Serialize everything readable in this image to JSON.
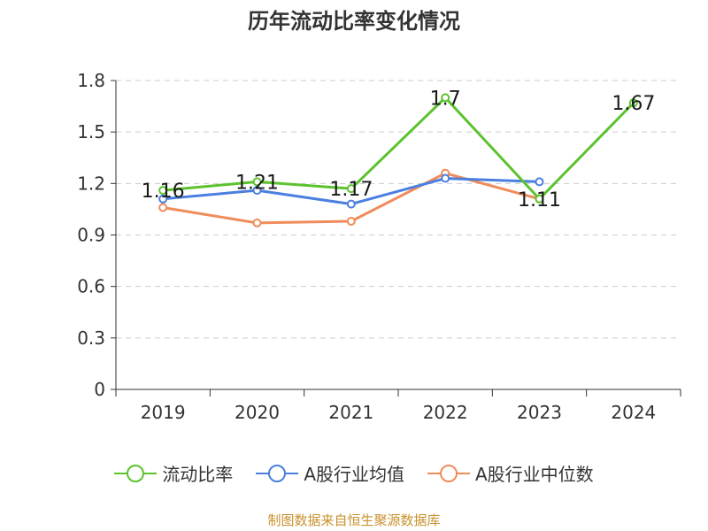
{
  "title": "历年流动比率变化情况",
  "source": "制图数据来自恒生聚源数据库",
  "colors": {
    "current_ratio": "#5cc22e",
    "industry_avg": "#4a7fe0",
    "industry_median": "#f08c5a",
    "grid": "#cccccc",
    "axis": "#333333"
  },
  "chart_data": {
    "type": "line",
    "title": "历年流动比率变化情况",
    "categories": [
      "2019",
      "2020",
      "2021",
      "2022",
      "2023",
      "2024"
    ],
    "ylim": [
      0,
      1.8
    ],
    "yticks": [
      "0",
      "0.3",
      "0.6",
      "0.9",
      "1.2",
      "1.5",
      "1.8"
    ],
    "grid": true,
    "legend_position": "bottom",
    "series": [
      {
        "name": "流动比率",
        "color": "#5cc22e",
        "values": [
          1.16,
          1.21,
          1.17,
          1.7,
          1.11,
          1.67
        ],
        "labels": [
          "1.16",
          "1.21",
          "1.17",
          "1.7",
          "1.11",
          "1.67"
        ]
      },
      {
        "name": "A股行业均值",
        "color": "#4a7fe0",
        "values": [
          1.11,
          1.16,
          1.08,
          1.23,
          1.21,
          null
        ]
      },
      {
        "name": "A股行业中位数",
        "color": "#f08c5a",
        "values": [
          1.06,
          0.97,
          0.98,
          1.26,
          1.11,
          null
        ]
      }
    ]
  }
}
